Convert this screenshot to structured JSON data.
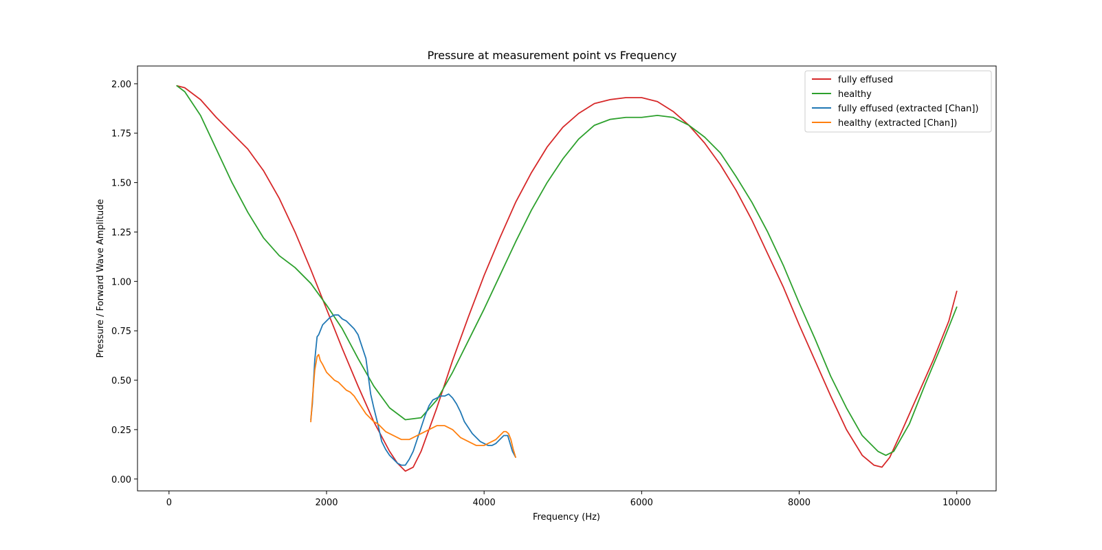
{
  "chart_data": {
    "type": "line",
    "title": "Pressure at measurement point vs Frequency",
    "xlabel": "Frequency (Hz)",
    "ylabel": "Pressure / Forward Wave Amplitude",
    "xlim": [
      -400,
      10500
    ],
    "ylim": [
      -0.06,
      2.09
    ],
    "xticks": [
      0,
      2000,
      4000,
      6000,
      8000,
      10000
    ],
    "xtick_labels": [
      "0",
      "2000",
      "4000",
      "6000",
      "8000",
      "10000"
    ],
    "yticks": [
      0.0,
      0.25,
      0.5,
      0.75,
      1.0,
      1.25,
      1.5,
      1.75,
      2.0
    ],
    "ytick_labels": [
      "0.00",
      "0.25",
      "0.50",
      "0.75",
      "1.00",
      "1.25",
      "1.50",
      "1.75",
      "2.00"
    ],
    "grid": false,
    "legend_position": "top-right",
    "series": [
      {
        "name": "fully effused",
        "color": "#d62728",
        "x": [
          100,
          200,
          400,
          600,
          800,
          1000,
          1200,
          1400,
          1600,
          1800,
          2000,
          2200,
          2400,
          2600,
          2800,
          2900,
          3000,
          3100,
          3200,
          3400,
          3600,
          3800,
          4000,
          4200,
          4400,
          4600,
          4800,
          5000,
          5200,
          5400,
          5600,
          5800,
          6000,
          6200,
          6400,
          6600,
          6800,
          7000,
          7200,
          7400,
          7600,
          7800,
          8000,
          8200,
          8400,
          8600,
          8800,
          8950,
          9050,
          9150,
          9300,
          9500,
          9700,
          9900,
          10000
        ],
        "y": [
          1.99,
          1.98,
          1.92,
          1.83,
          1.75,
          1.67,
          1.56,
          1.42,
          1.25,
          1.06,
          0.86,
          0.66,
          0.47,
          0.29,
          0.14,
          0.08,
          0.04,
          0.06,
          0.14,
          0.36,
          0.6,
          0.82,
          1.03,
          1.22,
          1.4,
          1.55,
          1.68,
          1.78,
          1.85,
          1.9,
          1.92,
          1.93,
          1.93,
          1.91,
          1.86,
          1.79,
          1.7,
          1.59,
          1.46,
          1.31,
          1.14,
          0.97,
          0.78,
          0.6,
          0.42,
          0.25,
          0.12,
          0.07,
          0.06,
          0.11,
          0.24,
          0.42,
          0.6,
          0.8,
          0.95
        ]
      },
      {
        "name": "healthy",
        "color": "#2ca02c",
        "x": [
          100,
          200,
          400,
          600,
          800,
          1000,
          1200,
          1400,
          1600,
          1800,
          2000,
          2200,
          2400,
          2600,
          2800,
          3000,
          3200,
          3400,
          3600,
          3800,
          4000,
          4200,
          4400,
          4600,
          4800,
          5000,
          5200,
          5400,
          5600,
          5800,
          6000,
          6200,
          6400,
          6600,
          6800,
          7000,
          7200,
          7400,
          7600,
          7800,
          8000,
          8200,
          8400,
          8600,
          8800,
          9000,
          9100,
          9200,
          9400,
          9600,
          9800,
          10000
        ],
        "y": [
          1.99,
          1.96,
          1.84,
          1.67,
          1.5,
          1.35,
          1.22,
          1.13,
          1.07,
          0.99,
          0.88,
          0.76,
          0.61,
          0.47,
          0.36,
          0.3,
          0.31,
          0.4,
          0.54,
          0.7,
          0.86,
          1.03,
          1.2,
          1.36,
          1.5,
          1.62,
          1.72,
          1.79,
          1.82,
          1.83,
          1.83,
          1.84,
          1.83,
          1.79,
          1.73,
          1.65,
          1.53,
          1.4,
          1.25,
          1.08,
          0.89,
          0.71,
          0.52,
          0.36,
          0.22,
          0.14,
          0.12,
          0.14,
          0.28,
          0.48,
          0.67,
          0.87
        ]
      },
      {
        "name": "fully effused (extracted [Chan])",
        "color": "#1f77b4",
        "x": [
          1800,
          1820,
          1850,
          1880,
          1900,
          1950,
          2000,
          2050,
          2100,
          2150,
          2200,
          2250,
          2300,
          2350,
          2400,
          2450,
          2500,
          2530,
          2560,
          2600,
          2650,
          2700,
          2750,
          2800,
          2850,
          2900,
          2950,
          3000,
          3050,
          3100,
          3150,
          3200,
          3250,
          3300,
          3350,
          3400,
          3450,
          3500,
          3550,
          3600,
          3650,
          3700,
          3750,
          3800,
          3850,
          3900,
          3950,
          4000,
          4050,
          4100,
          4150,
          4200,
          4250,
          4300,
          4330,
          4360,
          4400
        ],
        "y": [
          0.3,
          0.38,
          0.6,
          0.72,
          0.73,
          0.78,
          0.8,
          0.82,
          0.83,
          0.83,
          0.81,
          0.8,
          0.78,
          0.76,
          0.73,
          0.67,
          0.61,
          0.52,
          0.43,
          0.36,
          0.28,
          0.19,
          0.15,
          0.12,
          0.1,
          0.08,
          0.07,
          0.07,
          0.1,
          0.14,
          0.2,
          0.26,
          0.32,
          0.37,
          0.4,
          0.41,
          0.42,
          0.42,
          0.43,
          0.41,
          0.38,
          0.34,
          0.29,
          0.26,
          0.23,
          0.21,
          0.19,
          0.18,
          0.17,
          0.17,
          0.18,
          0.2,
          0.22,
          0.22,
          0.18,
          0.14,
          0.11
        ]
      },
      {
        "name": "healthy (extracted [Chan])",
        "color": "#ff7f0e",
        "x": [
          1800,
          1820,
          1850,
          1880,
          1900,
          1920,
          1950,
          2000,
          2050,
          2100,
          2150,
          2200,
          2250,
          2300,
          2350,
          2400,
          2450,
          2500,
          2550,
          2600,
          2650,
          2700,
          2750,
          2800,
          2850,
          2900,
          2950,
          3000,
          3050,
          3100,
          3150,
          3200,
          3250,
          3300,
          3350,
          3400,
          3450,
          3500,
          3550,
          3600,
          3650,
          3700,
          3750,
          3800,
          3850,
          3900,
          3950,
          4000,
          4050,
          4100,
          4150,
          4200,
          4250,
          4280,
          4310,
          4340,
          4370,
          4400
        ],
        "y": [
          0.29,
          0.4,
          0.55,
          0.62,
          0.63,
          0.6,
          0.58,
          0.54,
          0.52,
          0.5,
          0.49,
          0.47,
          0.45,
          0.44,
          0.42,
          0.39,
          0.36,
          0.33,
          0.31,
          0.29,
          0.28,
          0.26,
          0.24,
          0.23,
          0.22,
          0.21,
          0.2,
          0.2,
          0.2,
          0.21,
          0.22,
          0.23,
          0.24,
          0.25,
          0.26,
          0.27,
          0.27,
          0.27,
          0.26,
          0.25,
          0.23,
          0.21,
          0.2,
          0.19,
          0.18,
          0.17,
          0.17,
          0.17,
          0.18,
          0.19,
          0.2,
          0.22,
          0.24,
          0.24,
          0.23,
          0.2,
          0.15,
          0.11
        ]
      }
    ]
  }
}
